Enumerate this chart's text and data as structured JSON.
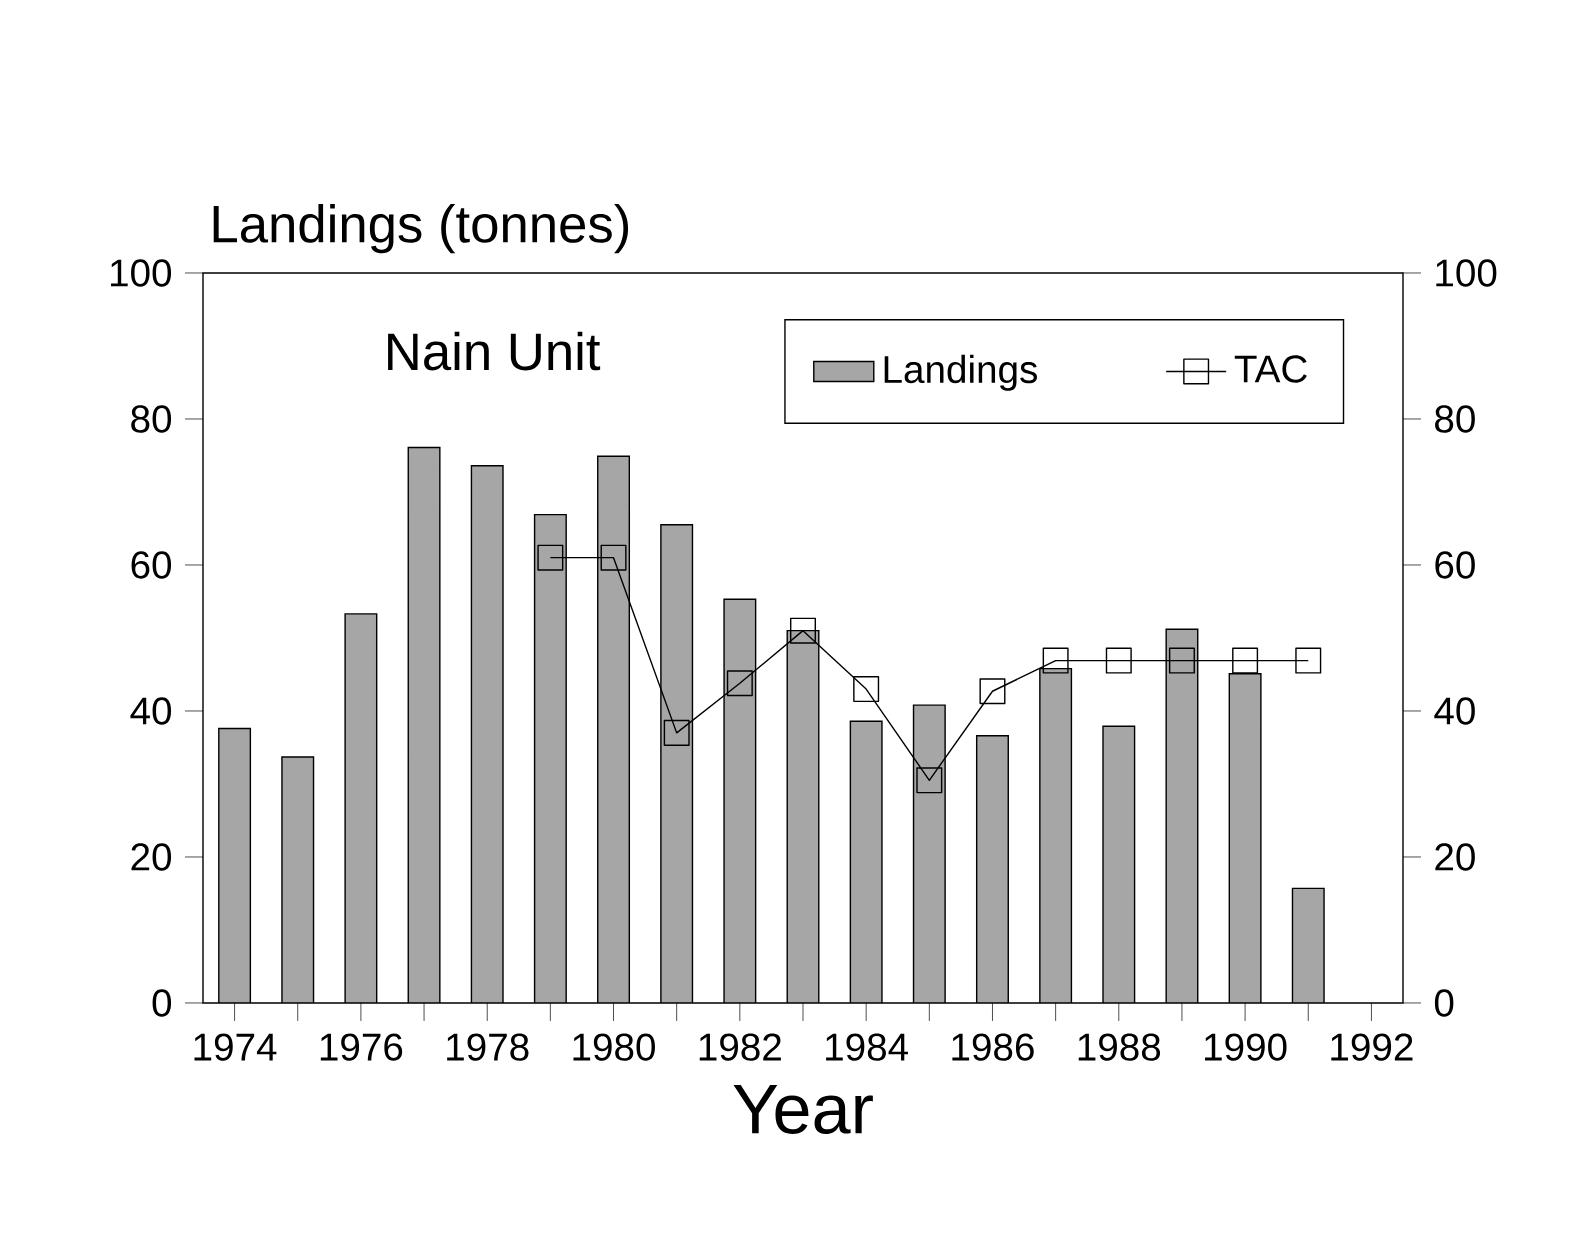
{
  "chart_data": {
    "type": "bar",
    "ylabel": "Landings (tonnes)",
    "xlabel": "Year",
    "annotations": [
      "Nain Unit"
    ],
    "categories": [
      "1974",
      null,
      "1976",
      null,
      "1978",
      null,
      "1980",
      null,
      "1982",
      null,
      "1984",
      null,
      "1986",
      null,
      "1988",
      null,
      "1990",
      null,
      "1992"
    ],
    "ylim": [
      0,
      100
    ],
    "yticks": [
      0,
      20,
      40,
      60,
      80,
      100
    ],
    "y2lim": [
      0,
      100
    ],
    "y2ticks": [
      0,
      20,
      40,
      60,
      80,
      100
    ],
    "legend": "top right",
    "grid": false,
    "series": [
      {
        "name": "Landings",
        "color": "#a6a6a6",
        "values": [
          37.6,
          33.7,
          53.3,
          76.1,
          73.6,
          66.9,
          74.9,
          65.5,
          55.3,
          51.0,
          38.6,
          40.8,
          36.6,
          45.8,
          37.9,
          51.2,
          45.1,
          15.7,
          null
        ]
      },
      {
        "name": "TAC",
        "type": "line",
        "color": "#000000",
        "marker": "square",
        "values": [
          null,
          null,
          null,
          null,
          null,
          61,
          61,
          37,
          43.8,
          51,
          43,
          30.5,
          42.7,
          46.9,
          46.9,
          46.9,
          46.9,
          46.9,
          null
        ]
      }
    ]
  }
}
